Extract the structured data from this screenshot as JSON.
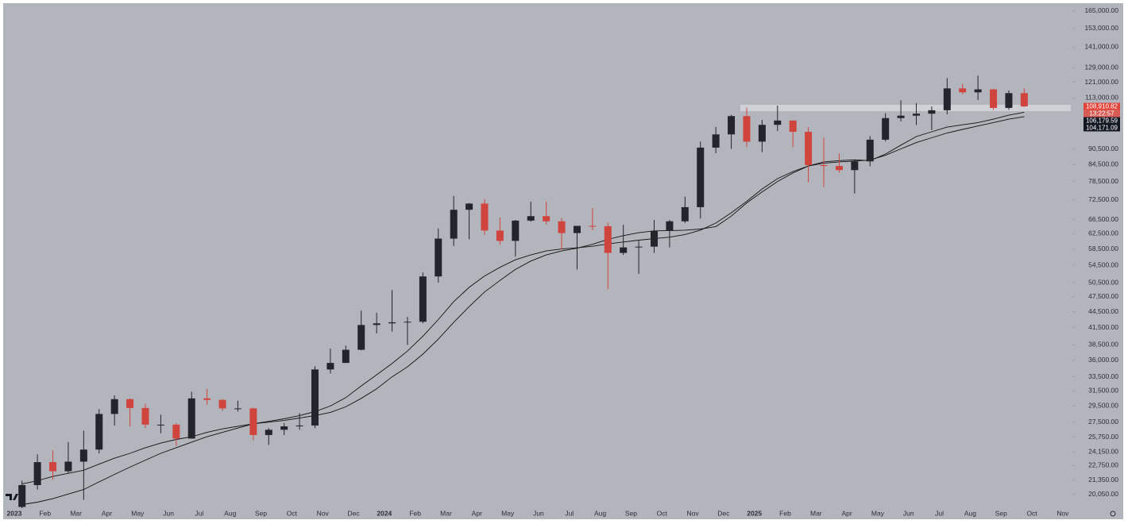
{
  "chart_data": {
    "type": "candlestick",
    "log_scale": true,
    "ylim": [
      18135,
      170800
    ],
    "yticks": [
      {
        "value": 165000,
        "label": "165,000.00"
      },
      {
        "value": 153000,
        "label": "153,000.00"
      },
      {
        "value": 141000,
        "label": "141,000.00"
      },
      {
        "value": 129000,
        "label": "129,000.00"
      },
      {
        "value": 121000,
        "label": "121,000.00"
      },
      {
        "value": 113000,
        "label": "113,000.00"
      },
      {
        "value": 90500,
        "label": "90,500.00"
      },
      {
        "value": 84500,
        "label": "84,500.00"
      },
      {
        "value": 78500,
        "label": "78,500.00"
      },
      {
        "value": 72500,
        "label": "72,500.00"
      },
      {
        "value": 66500,
        "label": "66,500.00"
      },
      {
        "value": 62500,
        "label": "62,500.00"
      },
      {
        "value": 58500,
        "label": "58,500.00"
      },
      {
        "value": 54500,
        "label": "54,500.00"
      },
      {
        "value": 50500,
        "label": "50,500.00"
      },
      {
        "value": 47500,
        "label": "47,500.00"
      },
      {
        "value": 44500,
        "label": "44,500.00"
      },
      {
        "value": 41500,
        "label": "41,500.00"
      },
      {
        "value": 38500,
        "label": "38,500.00"
      },
      {
        "value": 36000,
        "label": "36,000.00"
      },
      {
        "value": 33500,
        "label": "33,500.00"
      },
      {
        "value": 31500,
        "label": "31,500.00"
      },
      {
        "value": 29500,
        "label": "29,500.00"
      },
      {
        "value": 27500,
        "label": "27,500.00"
      },
      {
        "value": 25750,
        "label": "25,750.00"
      },
      {
        "value": 24150,
        "label": "24,150.00"
      },
      {
        "value": 22750,
        "label": "22,750.00"
      },
      {
        "value": 21350,
        "label": "21,350.00"
      },
      {
        "value": 20050,
        "label": "20,050.00"
      }
    ],
    "categories": [
      "2023",
      null,
      "Feb",
      null,
      "Mar",
      null,
      "Apr",
      null,
      "May",
      null,
      "Jun",
      null,
      "Jul",
      null,
      "Aug",
      null,
      "Sep",
      null,
      "Oct",
      null,
      "Nov",
      null,
      "Dec",
      null,
      "2024",
      null,
      "Feb",
      null,
      "Mar",
      null,
      "Apr",
      null,
      "May",
      null,
      "Jun",
      null,
      "Jul",
      null,
      "Aug",
      null,
      "Sep",
      null,
      "Oct",
      null,
      "Nov",
      null,
      "Dec",
      null,
      "2025",
      null,
      "Feb",
      null,
      "Mar",
      null,
      "Apr",
      null,
      "May",
      null,
      "Jun",
      null,
      "Jul",
      null,
      "Aug",
      null,
      "Sep",
      null,
      "Oct",
      null,
      "Nov",
      null
    ],
    "up_color": "#22252b",
    "down_color": "#d0443e",
    "candles": {
      "open": [
        19000,
        20900,
        23100,
        22200,
        23150,
        24400,
        28500,
        30400,
        29250,
        27200,
        27200,
        25600,
        30500,
        30300,
        29200,
        29200,
        26000,
        26600,
        27000,
        27100,
        34600,
        35600,
        37700,
        42000,
        42300,
        42500,
        42600,
        51900,
        61200,
        69400,
        71300,
        63400,
        60600,
        66200,
        67500,
        66000,
        62700,
        64700,
        64600,
        57500,
        58900,
        59100,
        63300,
        66000,
        70200,
        91000,
        96400,
        104400,
        93400,
        100500,
        102400,
        97500,
        84300,
        84000,
        82500,
        85700,
        94200,
        103500,
        104600,
        105500,
        107100,
        117800,
        115800,
        117300,
        108200,
        115400,
        null,
        null,
        null,
        null
      ],
      "high": [
        21300,
        23900,
        24300,
        25200,
        26500,
        29100,
        30900,
        30500,
        29800,
        28400,
        27400,
        31400,
        31800,
        30400,
        30200,
        29300,
        26800,
        27400,
        28600,
        35100,
        37900,
        38400,
        44700,
        44300,
        48900,
        43500,
        52800,
        64000,
        73700,
        71500,
        72700,
        67100,
        66400,
        71900,
        71900,
        66900,
        63800,
        69900,
        65600,
        65000,
        60600,
        66400,
        66400,
        73500,
        93400,
        99600,
        105000,
        108300,
        102700,
        109300,
        102500,
        99500,
        95000,
        88700,
        86400,
        95700,
        105700,
        111900,
        110500,
        108900,
        123200,
        120200,
        124500,
        117600,
        116800,
        117900,
        null,
        null,
        null,
        null
      ],
      "low": [
        18900,
        20500,
        21400,
        22000,
        19600,
        24000,
        27100,
        27000,
        26800,
        26200,
        24800,
        25600,
        29700,
        28900,
        28800,
        25400,
        24900,
        26000,
        26600,
        26800,
        34000,
        35600,
        37600,
        40500,
        40800,
        38500,
        42300,
        50500,
        59300,
        61000,
        62200,
        59600,
        56600,
        65900,
        65100,
        58400,
        53500,
        63500,
        49100,
        57000,
        52500,
        57500,
        58900,
        65500,
        66800,
        88800,
        90500,
        91300,
        89200,
        97800,
        91200,
        78200,
        76600,
        81600,
        74500,
        83900,
        93500,
        102000,
        100400,
        98200,
        105200,
        114800,
        112000,
        107300,
        107300,
        108700,
        null,
        null,
        null,
        null
      ],
      "close": [
        20900,
        23100,
        22200,
        23150,
        24400,
        28500,
        30400,
        29250,
        27200,
        27200,
        25600,
        30500,
        30300,
        29200,
        29200,
        26000,
        26600,
        27000,
        27100,
        34600,
        35600,
        37700,
        42000,
        42300,
        42500,
        42600,
        51900,
        61200,
        69400,
        71300,
        63400,
        60600,
        66200,
        67500,
        66000,
        62700,
        64700,
        64600,
        57500,
        58900,
        59100,
        63300,
        66000,
        70200,
        91000,
        96400,
        104400,
        93400,
        100500,
        102400,
        97500,
        84300,
        84000,
        82500,
        85700,
        94200,
        103500,
        104600,
        105500,
        107100,
        117800,
        115800,
        117300,
        108200,
        115400,
        108910.82,
        null,
        null,
        null,
        null
      ]
    },
    "lines": [
      {
        "color": "#111111",
        "values": [
          21000,
          21300,
          21700,
          22000,
          22300,
          22900,
          23500,
          24000,
          24600,
          25100,
          25500,
          25800,
          26300,
          26700,
          27000,
          27300,
          27500,
          27700,
          28000,
          28300,
          28700,
          29400,
          30500,
          31800,
          33500,
          35000,
          37000,
          39500,
          42500,
          45500,
          48500,
          51000,
          53500,
          55500,
          57000,
          58000,
          58700,
          59700,
          61000,
          62000,
          62800,
          63300,
          63400,
          63500,
          63800,
          64500,
          67500,
          71500,
          75000,
          78500,
          81500,
          84000,
          85500,
          86000,
          86300,
          86000,
          88500,
          92000,
          95500,
          97500,
          99500,
          100500,
          101500,
          103000,
          104800,
          106179.59,
          null,
          null,
          null,
          null
        ]
      },
      {
        "color": "#111111",
        "values": [
          19200,
          19400,
          19700,
          20100,
          20500,
          21200,
          21900,
          22600,
          23300,
          24000,
          24600,
          25200,
          25800,
          26300,
          26800,
          27300,
          27600,
          27900,
          28300,
          28800,
          29500,
          30600,
          32200,
          33800,
          35500,
          37500,
          40000,
          43000,
          46500,
          49500,
          52000,
          54000,
          55800,
          57000,
          58000,
          58500,
          58800,
          59200,
          59800,
          60300,
          60800,
          61200,
          61600,
          62300,
          63500,
          65500,
          68500,
          72000,
          76000,
          79500,
          82000,
          84000,
          85000,
          85500,
          85800,
          86200,
          88000,
          90500,
          93000,
          95000,
          97000,
          98500,
          100000,
          101500,
          103000,
          104171.09,
          null,
          null,
          null,
          null
        ]
      }
    ],
    "price_labels": [
      {
        "value": 108910.82,
        "label": "108,910.82",
        "color": "#e0463c"
      },
      {
        "value": 106179.59,
        "label": "106,179.59",
        "color": "#131722"
      },
      {
        "value": 104171.09,
        "label": "104,171.09",
        "color": "#131722"
      }
    ],
    "countdown": "13:22:57"
  }
}
